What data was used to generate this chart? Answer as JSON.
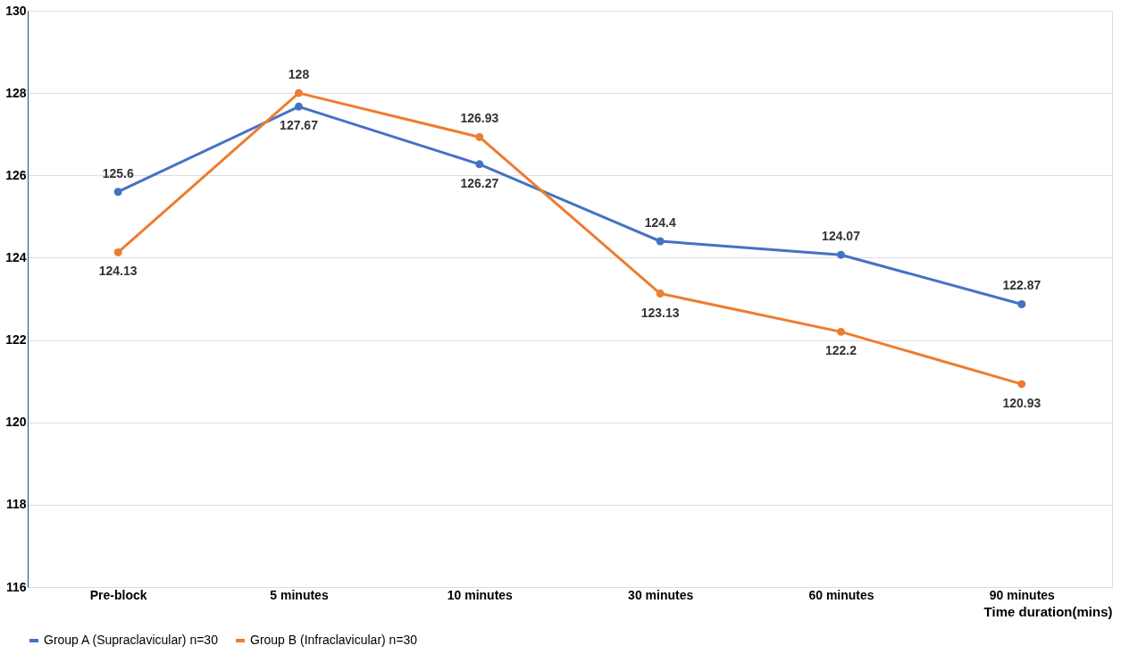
{
  "chart_data": {
    "type": "line",
    "xlabel": "Time duration(mins)",
    "categories": [
      "Pre-block",
      "5 minutes",
      "10 minutes",
      "30 minutes",
      "60 minutes",
      "90 minutes"
    ],
    "series": [
      {
        "name": "Group A (Supraclavicular) n=30",
        "color": "#4472c4",
        "values": [
          125.6,
          127.67,
          126.27,
          124.4,
          124.07,
          122.87
        ]
      },
      {
        "name": "Group B (Infraclavicular) n=30",
        "color": "#ed7d31",
        "values": [
          124.13,
          128,
          126.93,
          123.13,
          122.2,
          120.93
        ]
      }
    ],
    "ylim": [
      116,
      130
    ],
    "yticks": [
      116,
      118,
      120,
      122,
      124,
      126,
      128,
      130
    ],
    "grid": "y",
    "legend": "bottom",
    "marker": "circle",
    "data_labels": true
  }
}
